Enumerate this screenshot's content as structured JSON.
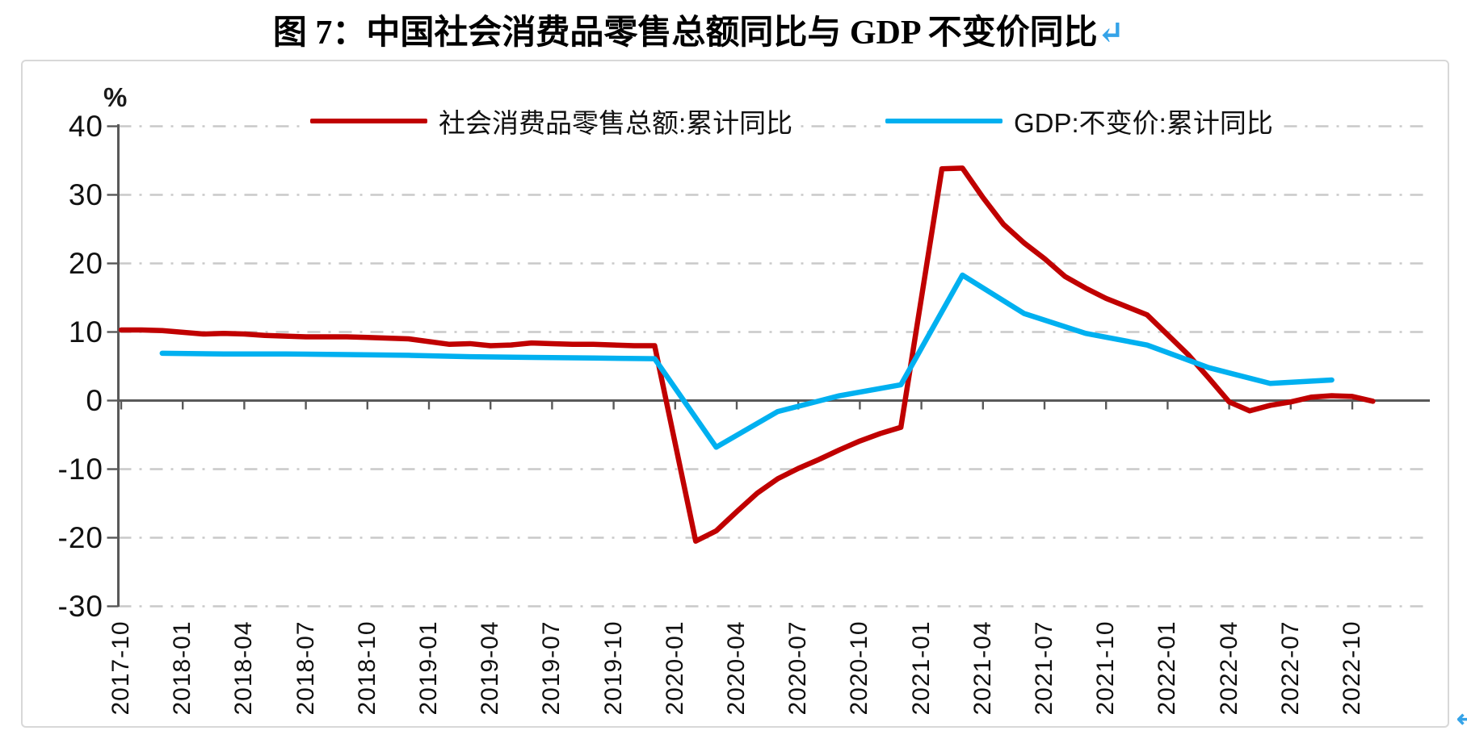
{
  "title": {
    "text": "图 7：中国社会消费品零售总额同比与 GDP 不变价同比",
    "return_mark": "↵"
  },
  "y_axis": {
    "unit_label": "%"
  },
  "corner": {
    "fragment_mark": "↵"
  },
  "chart_data": {
    "type": "line",
    "title": "图 7：中国社会消费品零售总额同比与 GDP 不变价同比",
    "xlabel": "",
    "ylabel": "%",
    "ylim": [
      -30,
      40
    ],
    "yticks": [
      40,
      30,
      20,
      10,
      0,
      -10,
      -20,
      -30
    ],
    "x_tick_labels": [
      "2017-10",
      "2018-01",
      "2018-04",
      "2018-07",
      "2018-10",
      "2019-01",
      "2019-04",
      "2019-07",
      "2019-10",
      "2020-01",
      "2020-04",
      "2020-07",
      "2020-10",
      "2021-01",
      "2021-04",
      "2021-07",
      "2021-10",
      "2022-01",
      "2022-04",
      "2022-07",
      "2022-10"
    ],
    "grid": "horizontal dash-dot gridlines, solid dark zero axis",
    "legend_position": "top-center",
    "series": [
      {
        "name": "社会消费品零售总额:累计同比",
        "color": "#C00000",
        "points": [
          [
            "2017-10",
            10.3
          ],
          [
            "2017-11",
            10.3
          ],
          [
            "2017-12",
            10.2
          ],
          [
            "2018-02",
            9.7
          ],
          [
            "2018-03",
            9.8
          ],
          [
            "2018-04",
            9.7
          ],
          [
            "2018-05",
            9.5
          ],
          [
            "2018-06",
            9.4
          ],
          [
            "2018-07",
            9.3
          ],
          [
            "2018-08",
            9.3
          ],
          [
            "2018-09",
            9.3
          ],
          [
            "2018-10",
            9.2
          ],
          [
            "2018-11",
            9.1
          ],
          [
            "2018-12",
            9.0
          ],
          [
            "2019-02",
            8.2
          ],
          [
            "2019-03",
            8.3
          ],
          [
            "2019-04",
            8.0
          ],
          [
            "2019-05",
            8.1
          ],
          [
            "2019-06",
            8.4
          ],
          [
            "2019-07",
            8.3
          ],
          [
            "2019-08",
            8.2
          ],
          [
            "2019-09",
            8.2
          ],
          [
            "2019-10",
            8.1
          ],
          [
            "2019-11",
            8.0
          ],
          [
            "2019-12",
            8.0
          ],
          [
            "2020-02",
            -20.5
          ],
          [
            "2020-03",
            -19.0
          ],
          [
            "2020-04",
            -16.2
          ],
          [
            "2020-05",
            -13.5
          ],
          [
            "2020-06",
            -11.4
          ],
          [
            "2020-07",
            -9.9
          ],
          [
            "2020-08",
            -8.6
          ],
          [
            "2020-09",
            -7.2
          ],
          [
            "2020-10",
            -5.9
          ],
          [
            "2020-11",
            -4.8
          ],
          [
            "2020-12",
            -3.9
          ],
          [
            "2021-02",
            33.8
          ],
          [
            "2021-03",
            33.9
          ],
          [
            "2021-04",
            29.6
          ],
          [
            "2021-05",
            25.7
          ],
          [
            "2021-06",
            23.0
          ],
          [
            "2021-07",
            20.7
          ],
          [
            "2021-08",
            18.1
          ],
          [
            "2021-09",
            16.4
          ],
          [
            "2021-10",
            14.9
          ],
          [
            "2021-11",
            13.7
          ],
          [
            "2021-12",
            12.5
          ],
          [
            "2022-02",
            6.7
          ],
          [
            "2022-03",
            3.3
          ],
          [
            "2022-04",
            -0.2
          ],
          [
            "2022-05",
            -1.5
          ],
          [
            "2022-06",
            -0.7
          ],
          [
            "2022-07",
            -0.2
          ],
          [
            "2022-08",
            0.5
          ],
          [
            "2022-09",
            0.7
          ],
          [
            "2022-10",
            0.6
          ],
          [
            "2022-11",
            -0.1
          ]
        ]
      },
      {
        "name": "GDP:不变价:累计同比",
        "color": "#00B0F0",
        "points": [
          [
            "2017-12",
            6.9
          ],
          [
            "2018-03",
            6.8
          ],
          [
            "2018-06",
            6.8
          ],
          [
            "2018-09",
            6.7
          ],
          [
            "2018-12",
            6.6
          ],
          [
            "2019-03",
            6.4
          ],
          [
            "2019-06",
            6.3
          ],
          [
            "2019-09",
            6.2
          ],
          [
            "2019-12",
            6.1
          ],
          [
            "2020-03",
            -6.8
          ],
          [
            "2020-06",
            -1.6
          ],
          [
            "2020-09",
            0.7
          ],
          [
            "2020-12",
            2.3
          ],
          [
            "2021-03",
            18.3
          ],
          [
            "2021-06",
            12.7
          ],
          [
            "2021-09",
            9.8
          ],
          [
            "2021-12",
            8.1
          ],
          [
            "2022-03",
            4.8
          ],
          [
            "2022-06",
            2.5
          ],
          [
            "2022-09",
            3.0
          ]
        ]
      }
    ]
  }
}
